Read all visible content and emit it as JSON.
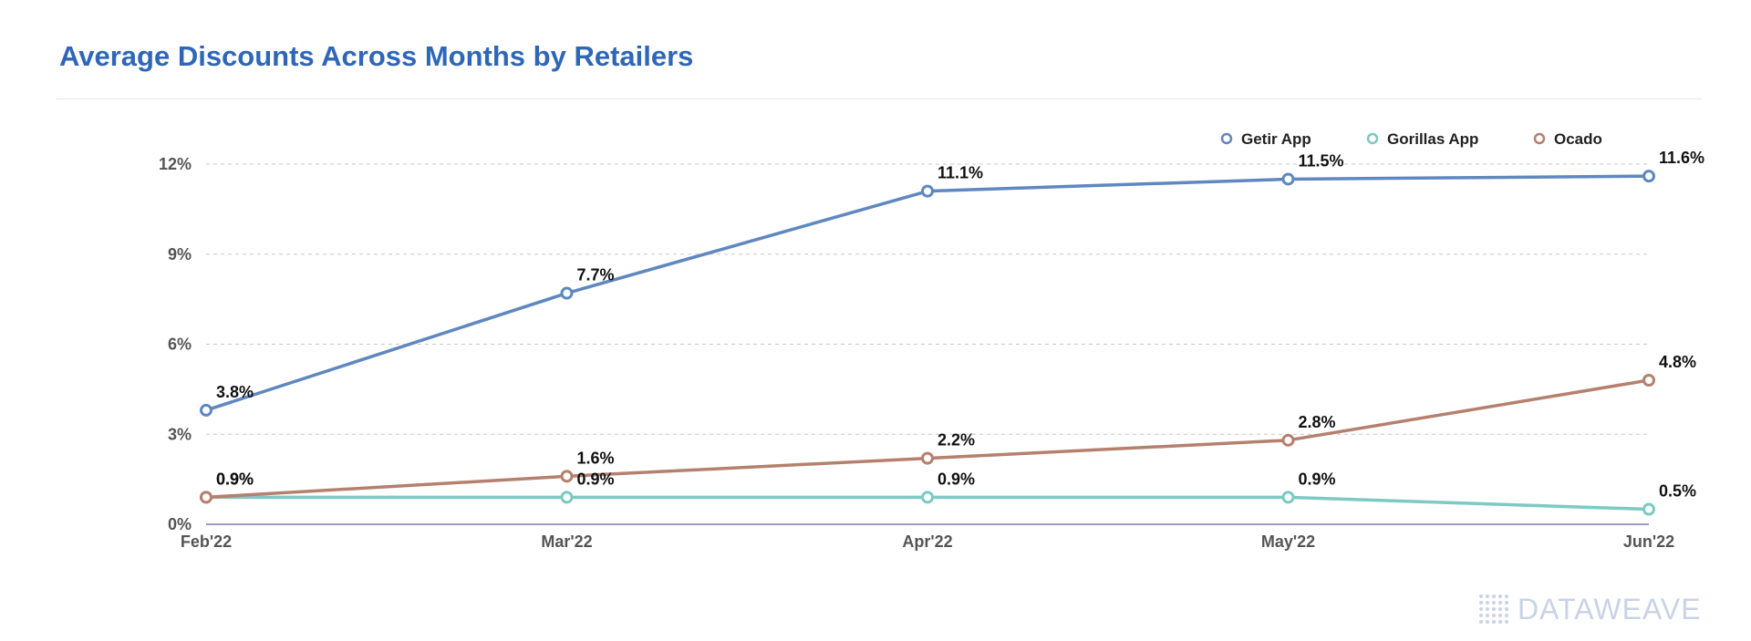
{
  "chart_data": {
    "type": "line",
    "title": "Average Discounts Across Months by Retailers",
    "xlabel": "",
    "ylabel": "",
    "categories": [
      "Feb'22",
      "Mar'22",
      "Apr'22",
      "May'22",
      "Jun'22"
    ],
    "ylim": [
      0,
      12
    ],
    "yticks": [
      0,
      3,
      6,
      9,
      12
    ],
    "ytick_labels": [
      "0%",
      "3%",
      "6%",
      "9%",
      "12%"
    ],
    "grid": true,
    "legend_position": "top-right",
    "series": [
      {
        "name": "Getir App",
        "color": "#5f87c0",
        "values": [
          3.8,
          7.7,
          11.1,
          11.5,
          11.6
        ],
        "labels": [
          "3.8%",
          "7.7%",
          "11.1%",
          "11.5%",
          "11.6%"
        ]
      },
      {
        "name": "Gorillas App",
        "color": "#7ec9c3",
        "values": [
          0.9,
          0.9,
          0.9,
          0.9,
          0.5
        ],
        "labels": [
          "0.9%",
          "0.9%",
          "0.9%",
          "0.9%",
          "0.5%"
        ]
      },
      {
        "name": "Ocado",
        "color": "#b5806e",
        "values": [
          0.9,
          1.6,
          2.2,
          2.8,
          4.8
        ],
        "labels": [
          "0.9%",
          "1.6%",
          "2.2%",
          "2.8%",
          "4.8%"
        ]
      }
    ]
  },
  "brand": {
    "logo_text": "DATAWEAVE"
  }
}
